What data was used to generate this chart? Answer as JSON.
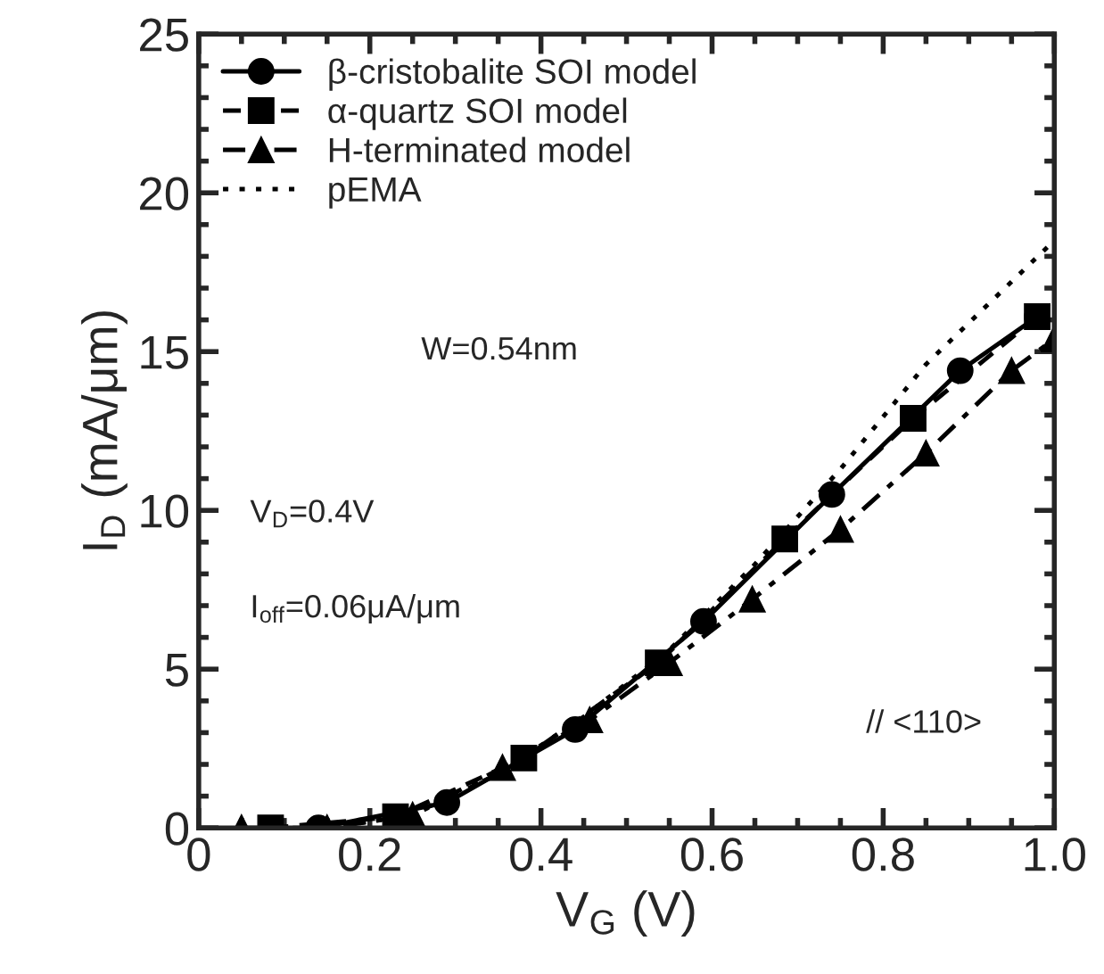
{
  "chart_data": {
    "type": "line",
    "xlabel": "V$_{G}$ (V)",
    "ylabel": "I$_{D}$ (mA/μm)",
    "xlim": [
      0,
      1.0
    ],
    "ylim": [
      0,
      25
    ],
    "xticks": [
      0,
      0.2,
      0.4,
      0.6,
      0.8,
      {
        "value": 1.0,
        "label": "1.0"
      }
    ],
    "yticks": [
      0,
      5,
      10,
      15,
      20,
      25
    ],
    "legend": "top left",
    "grid": false,
    "series": [
      {
        "name": "β-cristobalite SOI model",
        "color": "#000000",
        "marker": "circle",
        "line_style": "solid",
        "x": [
          0.14,
          0.29,
          0.44,
          0.59,
          0.74,
          0.89,
          0.98
        ],
        "values": [
          0,
          0.8,
          3.1,
          6.5,
          10.5,
          14.4,
          16.1
        ]
      },
      {
        "name": "α-quartz SOI model",
        "color": "#000000",
        "marker": "square",
        "line_style": "dashed",
        "x": [
          0.084,
          0.23,
          0.38,
          0.537,
          0.685,
          0.835,
          0.98
        ],
        "values": [
          0,
          0.35,
          2.2,
          5.2,
          9.1,
          12.9,
          16.1
        ]
      },
      {
        "name": "H-terminated model",
        "color": "#000000",
        "marker": "triangle",
        "line_style": "dashdot",
        "x": [
          0.05,
          0.15,
          0.25,
          0.355,
          0.457,
          0.55,
          0.647,
          0.75,
          0.85,
          0.95,
          1.0
        ],
        "values": [
          0,
          0,
          0.4,
          1.9,
          3.4,
          5.2,
          7.2,
          9.4,
          11.8,
          14.4,
          15.4
        ]
      },
      {
        "name": "pEMA",
        "color": "#000000",
        "marker": "none",
        "line_style": "dotted",
        "x": [
          0.15,
          0.25,
          0.35,
          0.45,
          0.55,
          0.65,
          0.75,
          0.85,
          1.0
        ],
        "values": [
          0,
          0.4,
          1.7,
          3.5,
          5.6,
          8.3,
          11.3,
          14.6,
          18.5
        ]
      }
    ],
    "annotations": [
      "W=0.54nm",
      "V$_{D}$=0.4V",
      "I$_{off}$=0.06μA/μm",
      "// <110>"
    ]
  }
}
